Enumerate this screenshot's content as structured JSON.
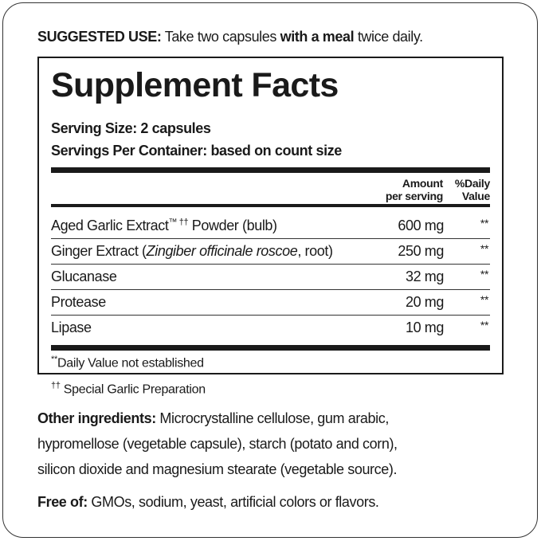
{
  "suggested_use": {
    "label": "SUGGESTED USE:",
    "text1": " Take two capsules ",
    "bold": "with a meal",
    "text2": " twice daily."
  },
  "facts": {
    "title": "Supplement Facts",
    "serving_size": "Serving Size: 2 capsules",
    "servings_per_container": "Servings Per Container: based on count size",
    "header_amount_1": "Amount",
    "header_amount_2": "per serving",
    "header_dv_1": "%Daily",
    "header_dv_2": "Value",
    "rows": [
      {
        "name_a": "Aged Garlic Extract",
        "sup": "™ ††",
        "name_b": " Powder (bulb)",
        "amount": "600 mg",
        "dv": "**"
      },
      {
        "name_a": "Ginger Extract (",
        "italic": "Zingiber officinale roscoe",
        "name_b": ", root)",
        "amount": "250 mg",
        "dv": "**"
      },
      {
        "name_a": "Glucanase",
        "amount": "32 mg",
        "dv": "**"
      },
      {
        "name_a": "Protease",
        "amount": "20 mg",
        "dv": "**"
      },
      {
        "name_a": "Lipase",
        "amount": "10 mg",
        "dv": "**"
      }
    ],
    "footnote_mark": "**",
    "footnote": "Daily Value not established"
  },
  "garlic_note": {
    "mark": "††",
    "text": "Special Garlic Preparation"
  },
  "other": {
    "label": "Other ingredients:",
    "line1": " Microcrystalline cellulose, gum arabic,",
    "line2": "hypromellose (vegetable capsule), starch (potato and corn),",
    "line3": "silicon dioxide and magnesium stearate (vegetable source)."
  },
  "free_of": {
    "label": "Free of:",
    "text": " GMOs, sodium, yeast, artificial colors or flavors."
  }
}
